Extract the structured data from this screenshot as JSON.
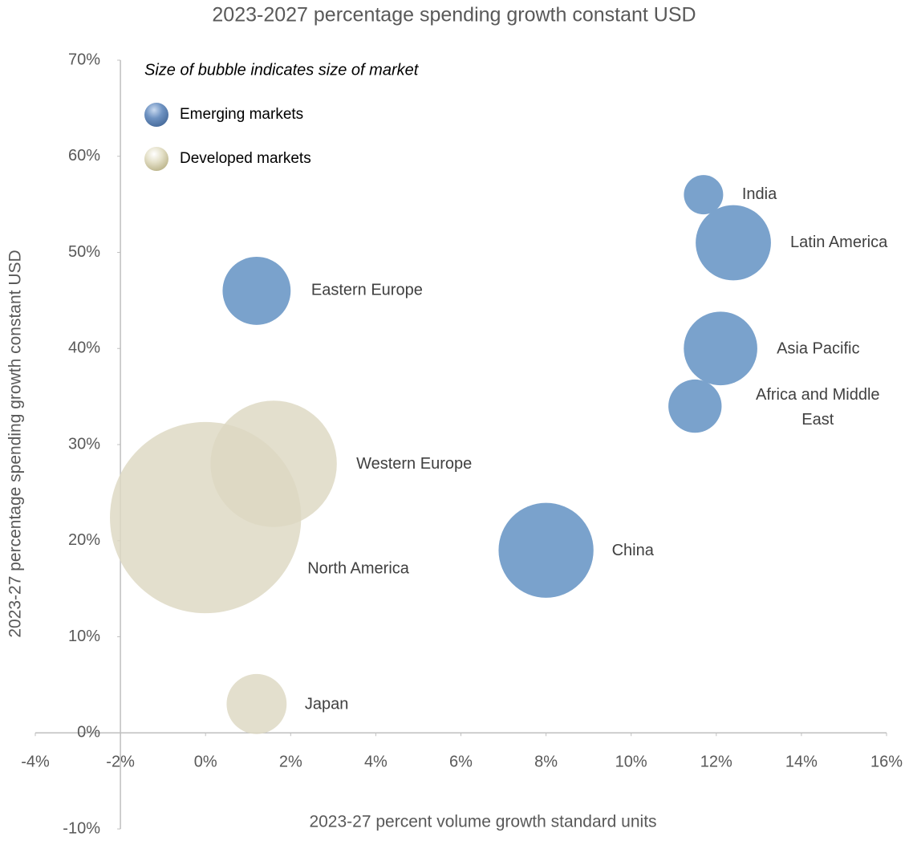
{
  "chart_data": {
    "type": "bubble",
    "title": "2023-2027 percentage spending growth constant USD",
    "x_label": "2023-27 percent volume growth standard units",
    "y_label": "2023-27 percentage spending growth constant USD",
    "annotation": "Size of bubble indicates size of market",
    "xlim": [
      -4,
      16
    ],
    "xticks": [
      {
        "value": -4,
        "label": "-4%"
      },
      {
        "value": -2,
        "label": "-2%"
      },
      {
        "value": 0,
        "label": "0%"
      },
      {
        "value": 2,
        "label": "2%"
      },
      {
        "value": 4,
        "label": "4%"
      },
      {
        "value": 6,
        "label": "6%"
      },
      {
        "value": 8,
        "label": "8%"
      },
      {
        "value": 10,
        "label": "10%"
      },
      {
        "value": 12,
        "label": "12%"
      },
      {
        "value": 14,
        "label": "14%"
      },
      {
        "value": 16,
        "label": "16%"
      }
    ],
    "ylim": [
      -10,
      70
    ],
    "yticks": [
      {
        "value": -10,
        "label": "-10%"
      },
      {
        "value": 0,
        "label": "0%"
      },
      {
        "value": 10,
        "label": "10%"
      },
      {
        "value": 20,
        "label": "20%"
      },
      {
        "value": 30,
        "label": "30%"
      },
      {
        "value": 40,
        "label": "40%"
      },
      {
        "value": 50,
        "label": "50%"
      },
      {
        "value": 60,
        "label": "60%"
      },
      {
        "value": 70,
        "label": "70%"
      }
    ],
    "series": [
      {
        "name": "Emerging markets",
        "color": "#7aa2cc",
        "labels": [
          "India",
          "Latin America",
          "Eastern Europe",
          "Asia Pacific",
          "Africa and Middle East",
          "China"
        ],
        "x": [
          11.7,
          12.4,
          1.2,
          12.1,
          11.5,
          8
        ],
        "values": [
          56,
          51,
          46,
          40,
          34,
          19
        ],
        "sizes": [
          6,
          22,
          18,
          21,
          11,
          35
        ]
      },
      {
        "name": "Developed markets",
        "color": "#ddd8c2",
        "labels": [
          "Western Europe",
          "North America",
          "Japan"
        ],
        "x": [
          1.6,
          0,
          1.2
        ],
        "values": [
          28,
          22.4,
          3
        ],
        "sizes": [
          62,
          142,
          14
        ]
      }
    ]
  }
}
